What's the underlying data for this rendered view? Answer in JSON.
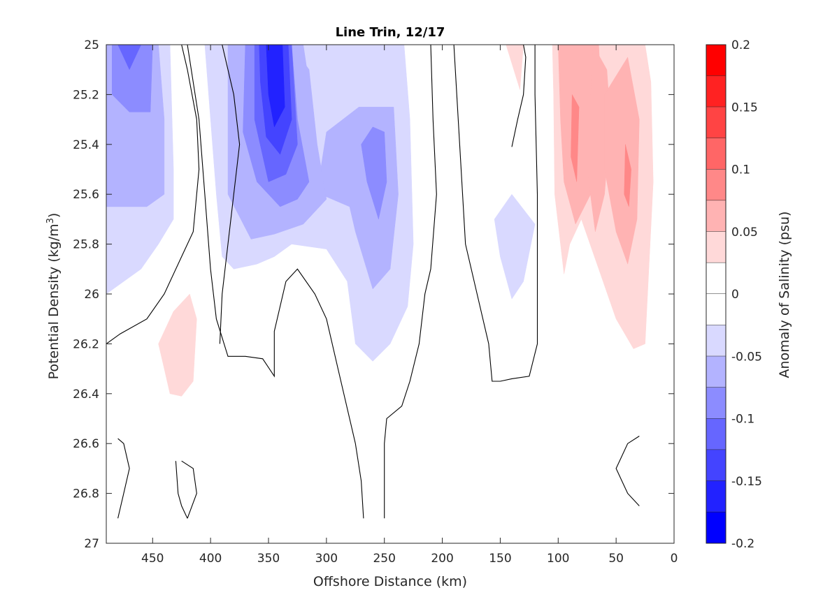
{
  "chart_data": {
    "type": "contour",
    "title": "Line Trin, 12/17",
    "xlabel": "Offshore Distance (km)",
    "ylabel": "Potential Density (kg/m",
    "ylabel_superscript": "3",
    "ylabel_suffix": ")",
    "xlim": [
      490,
      0
    ],
    "ylim": [
      25,
      27
    ],
    "x_reversed": true,
    "y_reversed": true,
    "x_ticks": [
      450,
      400,
      350,
      300,
      250,
      200,
      150,
      100,
      50,
      0
    ],
    "x_tick_labels": [
      "450",
      "400",
      "350",
      "300",
      "250",
      "200",
      "150",
      "100",
      "50",
      "0"
    ],
    "y_ticks": [
      25,
      25.2,
      25.4,
      25.6,
      25.8,
      26,
      26.2,
      26.4,
      26.6,
      26.8,
      27
    ],
    "y_tick_labels": [
      "25",
      "25.2",
      "25.4",
      "25.6",
      "25.8",
      "26",
      "26.2",
      "26.4",
      "26.6",
      "26.8",
      "27"
    ],
    "grid": false,
    "colorbar": {
      "label": "Anomaly of Salinity (psu)",
      "range": [
        -0.2,
        0.2
      ],
      "tick_values": [
        0.2,
        0.15,
        0.1,
        0.05,
        0,
        -0.05,
        -0.1,
        -0.15,
        -0.2
      ],
      "tick_labels": [
        "0.2",
        "0.15",
        "0.1",
        "0.05",
        "0",
        "-0.05",
        "-0.1",
        "-0.15",
        "-0.2"
      ],
      "levels": [
        {
          "min": 0.175,
          "max": 0.2,
          "color": "#ff0000"
        },
        {
          "min": 0.15,
          "max": 0.175,
          "color": "#ff2222"
        },
        {
          "min": 0.125,
          "max": 0.15,
          "color": "#ff4444"
        },
        {
          "min": 0.1,
          "max": 0.125,
          "color": "#ff6666"
        },
        {
          "min": 0.075,
          "max": 0.1,
          "color": "#ff8888"
        },
        {
          "min": 0.05,
          "max": 0.075,
          "color": "#ffb3b3"
        },
        {
          "min": 0.025,
          "max": 0.05,
          "color": "#ffd9d9"
        },
        {
          "min": 0.0,
          "max": 0.025,
          "color": "#ffffff"
        },
        {
          "min": -0.025,
          "max": 0.0,
          "color": "#ffffff"
        },
        {
          "min": -0.05,
          "max": -0.025,
          "color": "#d9d9ff"
        },
        {
          "min": -0.075,
          "max": -0.05,
          "color": "#b3b3ff"
        },
        {
          "min": -0.1,
          "max": -0.075,
          "color": "#8c8cff"
        },
        {
          "min": -0.125,
          "max": -0.1,
          "color": "#6666ff"
        },
        {
          "min": -0.15,
          "max": -0.125,
          "color": "#4444ff"
        },
        {
          "min": -0.175,
          "max": -0.15,
          "color": "#2222ff"
        },
        {
          "min": -0.2,
          "max": -0.175,
          "color": "#0000ff"
        }
      ]
    },
    "filled_regions": [
      {
        "level": -0.05,
        "color": "#d9d9ff",
        "points": [
          [
            490,
            25
          ],
          [
            435,
            25
          ],
          [
            432,
            25.5
          ],
          [
            432,
            25.7
          ],
          [
            445,
            25.8
          ],
          [
            460,
            25.9
          ],
          [
            475,
            25.95
          ],
          [
            490,
            26
          ]
        ]
      },
      {
        "level": -0.075,
        "color": "#b3b3ff",
        "points": [
          [
            490,
            25
          ],
          [
            445,
            25
          ],
          [
            440,
            25.3
          ],
          [
            440,
            25.6
          ],
          [
            455,
            25.65
          ],
          [
            475,
            25.65
          ],
          [
            490,
            25.65
          ]
        ]
      },
      {
        "level": -0.1,
        "color": "#8c8cff",
        "points": [
          [
            485,
            25
          ],
          [
            450,
            25
          ],
          [
            452,
            25.27
          ],
          [
            470,
            25.27
          ],
          [
            485,
            25.2
          ]
        ]
      },
      {
        "level": -0.125,
        "color": "#6666ff",
        "points": [
          [
            480,
            25
          ],
          [
            460,
            25
          ],
          [
            470,
            25.1
          ]
        ]
      },
      {
        "level": 0.05,
        "color": "#ffd9d9",
        "points": [
          [
            445,
            26.2
          ],
          [
            440,
            26.3
          ],
          [
            435,
            26.4
          ],
          [
            425,
            26.41
          ],
          [
            415,
            26.35
          ],
          [
            412,
            26.1
          ],
          [
            418,
            26.0
          ],
          [
            432,
            26.07
          ]
        ]
      },
      {
        "level": 0.05,
        "color": "#ffd9d9",
        "points": [
          [
            295,
            25
          ],
          [
            280,
            25
          ],
          [
            285,
            25.08
          ]
        ]
      },
      {
        "level": -0.05,
        "color": "#d9d9ff",
        "points": [
          [
            405,
            25
          ],
          [
            233,
            25
          ],
          [
            228,
            25.3
          ],
          [
            225,
            25.8
          ],
          [
            230,
            26.05
          ],
          [
            245,
            26.2
          ],
          [
            260,
            26.27
          ],
          [
            275,
            26.2
          ],
          [
            282,
            25.95
          ],
          [
            300,
            25.82
          ],
          [
            330,
            25.8
          ],
          [
            345,
            25.85
          ],
          [
            360,
            25.88
          ],
          [
            380,
            25.9
          ],
          [
            390,
            25.85
          ],
          [
            395,
            25.6
          ]
        ]
      },
      {
        "level": -0.075,
        "color": "#b3b3ff",
        "points": [
          [
            370,
            25
          ],
          [
            320,
            25
          ],
          [
            312,
            25.25
          ],
          [
            305,
            25.6
          ],
          [
            280,
            25.65
          ],
          [
            275,
            25.75
          ],
          [
            260,
            25.98
          ],
          [
            245,
            25.9
          ],
          [
            238,
            25.6
          ],
          [
            242,
            25.25
          ],
          [
            272,
            25.25
          ],
          [
            300,
            25.35
          ],
          [
            305,
            25.5
          ],
          [
            330,
            25.58
          ],
          [
            365,
            25.5
          ]
        ]
      },
      {
        "level": -0.075,
        "color": "#b3b3ff",
        "points": [
          [
            385,
            25
          ],
          [
            360,
            25
          ],
          [
            330,
            25
          ],
          [
            315,
            25.1
          ],
          [
            308,
            25.4
          ],
          [
            300,
            25.62
          ],
          [
            320,
            25.72
          ],
          [
            345,
            25.76
          ],
          [
            365,
            25.78
          ],
          [
            385,
            25.6
          ]
        ]
      },
      {
        "level": -0.1,
        "color": "#8c8cff",
        "points": [
          [
            370,
            25
          ],
          [
            330,
            25
          ],
          [
            325,
            25.3
          ],
          [
            315,
            25.55
          ],
          [
            325,
            25.62
          ],
          [
            340,
            25.65
          ],
          [
            360,
            25.55
          ],
          [
            372,
            25.35
          ]
        ]
      },
      {
        "level": -0.1,
        "color": "#8c8cff",
        "points": [
          [
            270,
            25.4
          ],
          [
            260,
            25.33
          ],
          [
            250,
            25.35
          ],
          [
            248,
            25.55
          ],
          [
            255,
            25.7
          ],
          [
            265,
            25.55
          ]
        ]
      },
      {
        "level": -0.125,
        "color": "#6666ff",
        "points": [
          [
            362,
            25
          ],
          [
            330,
            25
          ],
          [
            325,
            25.4
          ],
          [
            335,
            25.52
          ],
          [
            350,
            25.55
          ],
          [
            362,
            25.3
          ]
        ]
      },
      {
        "level": -0.15,
        "color": "#4444ff",
        "points": [
          [
            358,
            25
          ],
          [
            333,
            25
          ],
          [
            330,
            25.3
          ],
          [
            340,
            25.44
          ],
          [
            352,
            25.37
          ],
          [
            357,
            25.15
          ]
        ]
      },
      {
        "level": -0.175,
        "color": "#2222ff",
        "points": [
          [
            352,
            25
          ],
          [
            338,
            25
          ],
          [
            336,
            25.25
          ],
          [
            345,
            25.33
          ],
          [
            350,
            25.2
          ]
        ]
      },
      {
        "level": 0.05,
        "color": "#ffd9d9",
        "points": [
          [
            145,
            25
          ],
          [
            130,
            25
          ],
          [
            133,
            25.18
          ]
        ]
      },
      {
        "level": -0.05,
        "color": "#d9d9ff",
        "points": [
          [
            155,
            25.7
          ],
          [
            140,
            25.6
          ],
          [
            120,
            25.72
          ],
          [
            130,
            25.95
          ],
          [
            140,
            26.02
          ],
          [
            150,
            25.85
          ]
        ]
      },
      {
        "level": 0.05,
        "color": "#ffd9d9",
        "points": [
          [
            105,
            25
          ],
          [
            25,
            25
          ],
          [
            20,
            25.15
          ],
          [
            18,
            25.55
          ],
          [
            25,
            26.2
          ],
          [
            35,
            26.22
          ],
          [
            50,
            26.1
          ],
          [
            65,
            25.9
          ],
          [
            80,
            25.7
          ],
          [
            90,
            25.8
          ],
          [
            95,
            25.92
          ],
          [
            103,
            25.6
          ],
          [
            104,
            25.2
          ]
        ]
      },
      {
        "level": 0.075,
        "color": "#ffb3b3",
        "points": [
          [
            100,
            25
          ],
          [
            65,
            25
          ],
          [
            62,
            25.3
          ],
          [
            72,
            25.6
          ],
          [
            85,
            25.72
          ],
          [
            95,
            25.55
          ],
          [
            98,
            25.3
          ]
        ]
      },
      {
        "level": 0.075,
        "color": "#ffb3b3",
        "points": [
          [
            70,
            25
          ],
          [
            58,
            25.1
          ],
          [
            55,
            25.3
          ],
          [
            60,
            25.6
          ],
          [
            68,
            25.75
          ],
          [
            75,
            25.5
          ],
          [
            72,
            25.2
          ]
        ]
      },
      {
        "level": 0.075,
        "color": "#ffb3b3",
        "points": [
          [
            60,
            25.2
          ],
          [
            40,
            25.05
          ],
          [
            30,
            25.3
          ],
          [
            32,
            25.7
          ],
          [
            40,
            25.88
          ],
          [
            50,
            25.75
          ],
          [
            60,
            25.5
          ]
        ]
      },
      {
        "level": 0.1,
        "color": "#ff8888",
        "points": [
          [
            88,
            25.2
          ],
          [
            82,
            25.25
          ],
          [
            84,
            25.55
          ],
          [
            89,
            25.45
          ]
        ]
      },
      {
        "level": 0.1,
        "color": "#ff8888",
        "points": [
          [
            42,
            25.4
          ],
          [
            37,
            25.5
          ],
          [
            39,
            25.65
          ],
          [
            43,
            25.6
          ]
        ]
      }
    ],
    "zero_contours": [
      [
        [
          490,
          26.2
        ],
        [
          478,
          26.16
        ],
        [
          455,
          26.1
        ],
        [
          440,
          26.0
        ],
        [
          425,
          25.85
        ],
        [
          415,
          25.75
        ],
        [
          410,
          25.5
        ],
        [
          412,
          25.3
        ],
        [
          420,
          25.1
        ],
        [
          425,
          25
        ]
      ],
      [
        [
          420,
          25
        ],
        [
          410,
          25.3
        ],
        [
          405,
          25.6
        ],
        [
          400,
          25.9
        ],
        [
          395,
          26.1
        ],
        [
          385,
          26.25
        ],
        [
          370,
          26.25
        ],
        [
          355,
          26.26
        ],
        [
          345,
          26.33
        ],
        [
          345,
          26.15
        ],
        [
          335,
          25.95
        ],
        [
          325,
          25.9
        ],
        [
          310,
          26.0
        ],
        [
          300,
          26.1
        ],
        [
          290,
          26.3
        ],
        [
          280,
          26.5
        ],
        [
          275,
          26.6
        ],
        [
          270,
          26.75
        ],
        [
          268,
          26.9
        ]
      ],
      [
        [
          390,
          25
        ],
        [
          385,
          25.1
        ],
        [
          380,
          25.2
        ],
        [
          375,
          25.4
        ],
        [
          380,
          25.6
        ],
        [
          385,
          25.8
        ],
        [
          390,
          26.0
        ],
        [
          392,
          26.2
        ]
      ],
      [
        [
          250,
          26.9
        ],
        [
          250,
          26.6
        ],
        [
          248,
          26.5
        ],
        [
          235,
          26.45
        ],
        [
          228,
          26.35
        ],
        [
          220,
          26.2
        ],
        [
          215,
          26.0
        ],
        [
          210,
          25.9
        ],
        [
          205,
          25.6
        ],
        [
          208,
          25.3
        ],
        [
          210,
          25.0
        ]
      ],
      [
        [
          190,
          25
        ],
        [
          185,
          25.4
        ],
        [
          180,
          25.8
        ],
        [
          170,
          26.0
        ],
        [
          160,
          26.2
        ],
        [
          157,
          26.35
        ],
        [
          150,
          26.35
        ],
        [
          140,
          26.34
        ],
        [
          125,
          26.33
        ],
        [
          118,
          26.2
        ],
        [
          118,
          25.6
        ],
        [
          120,
          25.2
        ],
        [
          120,
          25.0
        ]
      ],
      [
        [
          140,
          25.41
        ],
        [
          135,
          25.3
        ],
        [
          130,
          25.2
        ],
        [
          128,
          25.05
        ],
        [
          130,
          25
        ]
      ],
      [
        [
          480,
          26.58
        ],
        [
          475,
          26.6
        ],
        [
          470,
          26.7
        ],
        [
          475,
          26.8
        ],
        [
          480,
          26.9
        ]
      ],
      [
        [
          430,
          26.67
        ],
        [
          428,
          26.8
        ],
        [
          425,
          26.85
        ],
        [
          420,
          26.9
        ]
      ],
      [
        [
          420,
          26.9
        ],
        [
          412,
          26.8
        ],
        [
          415,
          26.7
        ],
        [
          425,
          26.67
        ]
      ],
      [
        [
          30,
          26.57
        ],
        [
          40,
          26.6
        ],
        [
          50,
          26.7
        ],
        [
          40,
          26.8
        ],
        [
          30,
          26.85
        ]
      ]
    ]
  }
}
